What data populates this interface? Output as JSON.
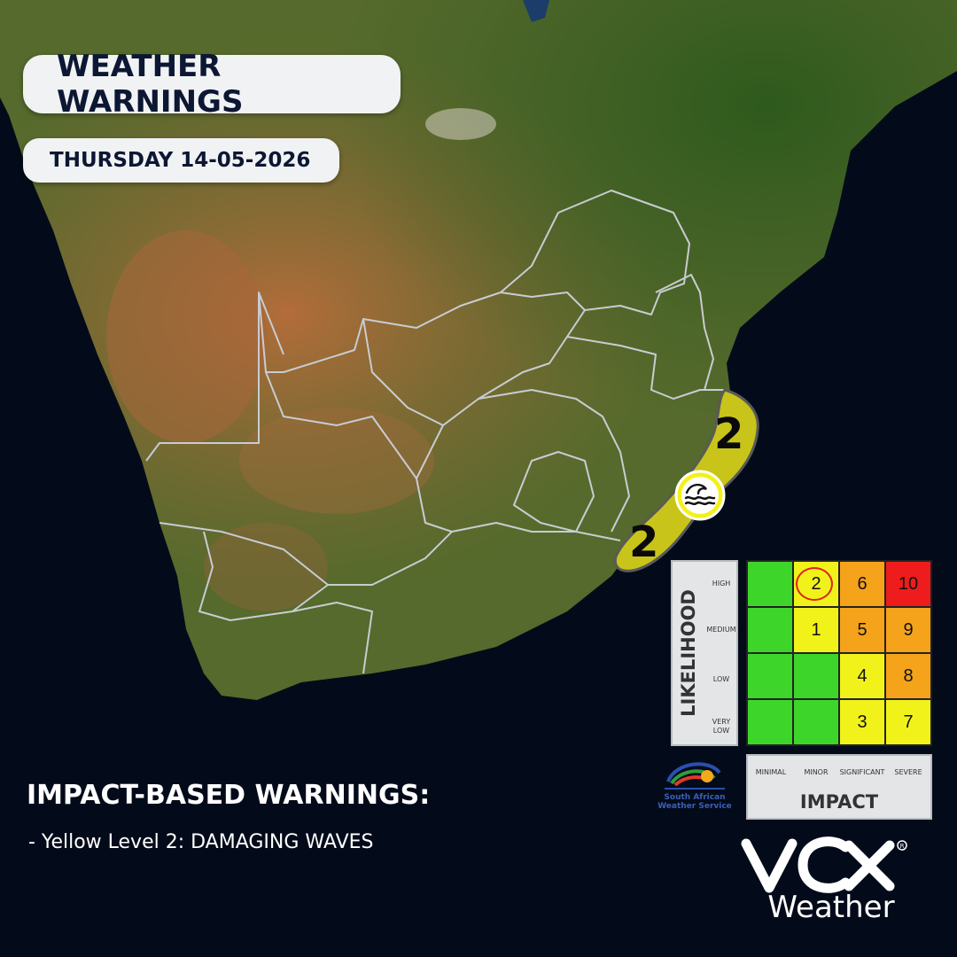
{
  "header": {
    "title": "WEATHER WARNINGS",
    "date": "THURSDAY 14-05-2026"
  },
  "map": {
    "zones": [
      {
        "level_label": "2",
        "hazard": "waves-icon"
      },
      {
        "level_label": "2",
        "hazard": "waves-icon"
      }
    ],
    "colors": {
      "ocean": "#030b1a",
      "land_dark": "#4a5a22",
      "land_arid": "#a0693a",
      "land_green": "#2f5a1e",
      "border": "#c8ccd2",
      "warning_zone": "#c8c41a"
    }
  },
  "matrix": {
    "likelihood_title": "LIKELIHOOD",
    "impact_title": "IMPACT",
    "likelihood_levels": [
      "HIGH",
      "MEDIUM",
      "LOW",
      "VERY LOW"
    ],
    "impact_levels": [
      "MINIMAL",
      "MINOR",
      "SIGNIFICANT",
      "SEVERE"
    ],
    "cells": [
      [
        {
          "v": "",
          "c": "#3ed52a"
        },
        {
          "v": "2",
          "c": "#f2f21b"
        },
        {
          "v": "6",
          "c": "#f5a31b"
        },
        {
          "v": "10",
          "c": "#ee1c1c"
        }
      ],
      [
        {
          "v": "",
          "c": "#3ed52a"
        },
        {
          "v": "1",
          "c": "#f2f21b"
        },
        {
          "v": "5",
          "c": "#f5a31b"
        },
        {
          "v": "9",
          "c": "#f5a31b"
        }
      ],
      [
        {
          "v": "",
          "c": "#3ed52a"
        },
        {
          "v": "",
          "c": "#3ed52a"
        },
        {
          "v": "4",
          "c": "#f2f21b"
        },
        {
          "v": "8",
          "c": "#f5a31b"
        }
      ],
      [
        {
          "v": "",
          "c": "#3ed52a"
        },
        {
          "v": "",
          "c": "#3ed52a"
        },
        {
          "v": "3",
          "c": "#f2f21b"
        },
        {
          "v": "7",
          "c": "#f2f21b"
        }
      ]
    ],
    "highlighted": {
      "row": 0,
      "col": 1
    }
  },
  "logos": {
    "saws_line1": "South African",
    "saws_line2": "Weather Service",
    "vox_sub": "Weather"
  },
  "warnings": {
    "heading": "IMPACT-BASED WARNINGS:",
    "items": [
      "- Yellow Level 2: DAMAGING WAVES"
    ]
  }
}
